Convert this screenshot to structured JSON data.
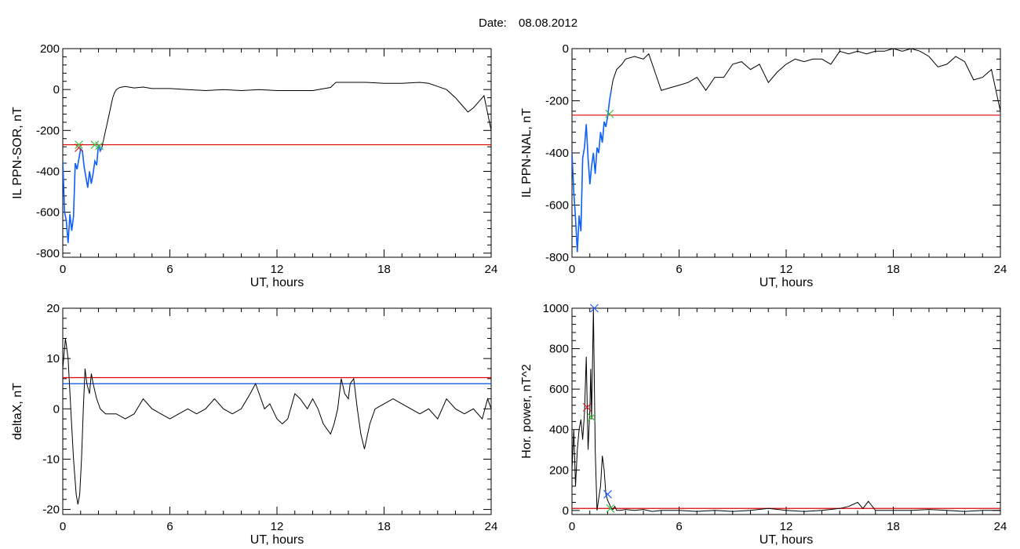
{
  "figure": {
    "title_label": "Date:",
    "title_value": "08.08.2012"
  },
  "colors": {
    "trace": "#000000",
    "threshold_red": "#e00000",
    "threshold_blue": "#0050e0",
    "highlight_blue": "#1060ff",
    "marker_green": "#40c040",
    "marker_red": "#d02020",
    "marker_blue": "#2060ff"
  },
  "chart_data": [
    {
      "type": "line",
      "xlabel": "UT, hours",
      "ylabel": "IL PPN-SOR, nT",
      "xlim": [
        0,
        24
      ],
      "ylim": [
        -820,
        200
      ],
      "xticks": [
        0,
        6,
        12,
        18,
        24
      ],
      "yticks": [
        -800,
        -600,
        -400,
        -200,
        0,
        200
      ],
      "thresholds": [
        {
          "color": "red",
          "y": -270
        }
      ],
      "series": [
        {
          "x": [
            0,
            0.1,
            0.2,
            0.3,
            0.4,
            0.5,
            0.6,
            0.7,
            0.8,
            0.9,
            1.0,
            1.1,
            1.2,
            1.3,
            1.4,
            1.5,
            1.6,
            1.7,
            1.8,
            1.9,
            2.0,
            2.1,
            2.2,
            2.3,
            2.4,
            2.5,
            2.6,
            2.7,
            2.8,
            2.9,
            3.0,
            3.2,
            3.5,
            4,
            4.5,
            5,
            6,
            7,
            8,
            9,
            10,
            11,
            12,
            13,
            14,
            15,
            15.3,
            16,
            17,
            18,
            19,
            20,
            20.5,
            21,
            21.5,
            22,
            22.4,
            22.7,
            23,
            23.3,
            23.6,
            24
          ],
          "y": [
            -350,
            -600,
            -640,
            -750,
            -610,
            -690,
            -620,
            -360,
            -390,
            -340,
            -290,
            -300,
            -380,
            -430,
            -480,
            -400,
            -460,
            -410,
            -350,
            -370,
            -270,
            -300,
            -280,
            -240,
            -200,
            -160,
            -120,
            -80,
            -40,
            -15,
            0,
            10,
            15,
            8,
            12,
            5,
            5,
            0,
            -5,
            0,
            -5,
            0,
            -5,
            -5,
            -5,
            10,
            35,
            35,
            35,
            30,
            30,
            35,
            30,
            15,
            0,
            -40,
            -80,
            -110,
            -90,
            -60,
            -30,
            -200
          ]
        }
      ],
      "highlight": {
        "x0": 0,
        "x1": 2.2,
        "color": "blue"
      },
      "markers": [
        {
          "x": 0.9,
          "y": -285,
          "color": "red"
        },
        {
          "x": 0.9,
          "y": -270,
          "color": "green"
        },
        {
          "x": 1.8,
          "y": -270,
          "color": "green"
        },
        {
          "x": 2.05,
          "y": -275,
          "color": "green"
        }
      ]
    },
    {
      "type": "line",
      "xlabel": "UT, hours",
      "ylabel": "IL PPN-NAL, nT",
      "xlim": [
        0,
        24
      ],
      "ylim": [
        -800,
        0
      ],
      "xticks": [
        0,
        6,
        12,
        18,
        24
      ],
      "yticks": [
        -800,
        -600,
        -400,
        -200,
        0
      ],
      "thresholds": [
        {
          "color": "red",
          "y": -255
        }
      ],
      "series": [
        {
          "x": [
            0,
            0.1,
            0.2,
            0.3,
            0.4,
            0.5,
            0.6,
            0.7,
            0.8,
            0.9,
            1.0,
            1.1,
            1.2,
            1.3,
            1.4,
            1.5,
            1.6,
            1.7,
            1.8,
            1.9,
            2.0,
            2.1,
            2.2,
            2.3,
            2.5,
            2.8,
            3,
            3.5,
            4,
            4.3,
            4.5,
            4.8,
            5,
            5.5,
            6,
            6.5,
            7,
            7.5,
            8,
            8.5,
            9,
            9.5,
            10,
            10.5,
            11,
            11.5,
            12,
            12.5,
            13,
            13.5,
            14,
            14.5,
            15,
            15.5,
            16,
            16.5,
            17,
            17.5,
            18,
            18.5,
            19,
            19.5,
            20,
            20.5,
            21,
            21.5,
            22,
            22.5,
            23,
            23.5,
            24
          ],
          "y": [
            -400,
            -550,
            -650,
            -780,
            -640,
            -700,
            -420,
            -380,
            -290,
            -420,
            -520,
            -450,
            -400,
            -480,
            -380,
            -400,
            -320,
            -360,
            -280,
            -300,
            -260,
            -200,
            -160,
            -120,
            -80,
            -60,
            -40,
            -30,
            -40,
            -20,
            -60,
            -120,
            -160,
            -150,
            -140,
            -130,
            -110,
            -160,
            -110,
            -110,
            -60,
            -50,
            -80,
            -60,
            -130,
            -90,
            -60,
            -40,
            -50,
            -40,
            -40,
            -60,
            -10,
            -20,
            -10,
            -20,
            -10,
            -10,
            0,
            -10,
            0,
            -10,
            -30,
            -70,
            -60,
            -30,
            -50,
            -120,
            -110,
            -80,
            -240
          ]
        }
      ],
      "highlight": {
        "x0": 0,
        "x1": 2.2,
        "color": "blue"
      },
      "markers": [
        {
          "x": 2.1,
          "y": -250,
          "color": "green"
        }
      ]
    },
    {
      "type": "line",
      "xlabel": "UT, hours",
      "ylabel": "deltaX, nT",
      "xlim": [
        0,
        24
      ],
      "ylim": [
        -21,
        20
      ],
      "xticks": [
        0,
        6,
        12,
        18,
        24
      ],
      "yticks": [
        -20,
        -10,
        0,
        10,
        20
      ],
      "thresholds": [
        {
          "color": "red",
          "y": 6.2
        },
        {
          "color": "blue",
          "y": 5.0
        }
      ],
      "series": [
        {
          "x": [
            0,
            0.15,
            0.3,
            0.45,
            0.6,
            0.75,
            0.85,
            0.95,
            1.05,
            1.15,
            1.25,
            1.35,
            1.5,
            1.6,
            1.7,
            1.9,
            2.1,
            2.4,
            3,
            3.5,
            4,
            4.5,
            5,
            5.5,
            6,
            6.5,
            7,
            7.5,
            8,
            8.5,
            9,
            9.5,
            10,
            10.5,
            10.8,
            11,
            11.3,
            11.6,
            12,
            12.3,
            12.6,
            13,
            13.3,
            13.7,
            14,
            14.3,
            14.6,
            15,
            15.2,
            15.4,
            15.6,
            15.8,
            16,
            16.1,
            16.3,
            16.5,
            16.7,
            16.9,
            17.2,
            17.5,
            18,
            18.5,
            19,
            19.5,
            20,
            20.5,
            21,
            21.5,
            22,
            22.5,
            23,
            23.5,
            23.8,
            24
          ],
          "y": [
            8,
            14,
            10,
            0,
            -10,
            -17,
            -19,
            -17,
            -10,
            0,
            8,
            5,
            3,
            7,
            5,
            2,
            0,
            -1,
            -1,
            -2,
            -1,
            2,
            0,
            -1,
            -2,
            -1,
            0,
            -1,
            0,
            2,
            0,
            -1,
            0,
            3,
            5,
            3,
            0,
            1,
            -2,
            -3,
            -2,
            3,
            2,
            0,
            2,
            0,
            -3,
            -5,
            -3,
            0,
            6,
            3,
            2,
            5,
            6,
            0,
            -5,
            -8,
            -3,
            0,
            1,
            2,
            1,
            0,
            -1,
            0,
            -2,
            2,
            0,
            -1,
            0,
            -2,
            2,
            0
          ]
        }
      ]
    },
    {
      "type": "line",
      "xlabel": "UT, hours",
      "ylabel": "Hor. power, nT^2",
      "xlim": [
        0,
        24
      ],
      "ylim": [
        -20,
        1000
      ],
      "xticks": [
        0,
        6,
        12,
        18,
        24
      ],
      "yticks": [
        0,
        200,
        400,
        600,
        800,
        1000
      ],
      "thresholds": [
        {
          "color": "red",
          "y": 10
        }
      ],
      "series": [
        {
          "x": [
            0,
            0.1,
            0.2,
            0.3,
            0.4,
            0.5,
            0.6,
            0.7,
            0.8,
            0.9,
            1.0,
            1.05,
            1.1,
            1.2,
            1.3,
            1.4,
            1.5,
            1.6,
            1.7,
            1.8,
            1.9,
            2.0,
            2.1,
            2.2,
            2.3,
            2.4,
            2.5,
            2.7,
            3,
            3.5,
            4,
            4.5,
            5,
            6,
            7,
            8,
            9,
            10,
            11,
            12,
            13,
            14,
            15,
            15.5,
            16,
            16.3,
            16.6,
            17,
            18,
            19,
            20,
            21,
            22,
            23,
            24
          ],
          "y": [
            200,
            400,
            120,
            300,
            400,
            450,
            350,
            480,
            760,
            300,
            500,
            700,
            450,
            1000,
            300,
            0,
            60,
            120,
            270,
            200,
            80,
            50,
            30,
            10,
            5,
            20,
            0,
            0,
            5,
            0,
            5,
            -5,
            0,
            0,
            -5,
            0,
            -5,
            0,
            10,
            0,
            -5,
            0,
            10,
            20,
            40,
            10,
            45,
            0,
            0,
            0,
            5,
            0,
            -5,
            0,
            0
          ]
        }
      ],
      "markers": [
        {
          "x": 0.85,
          "y": 510,
          "color": "red"
        },
        {
          "x": 1.1,
          "y": 460,
          "color": "green"
        },
        {
          "x": 1.25,
          "y": 1000,
          "color": "blue"
        },
        {
          "x": 2.0,
          "y": 80,
          "color": "blue"
        },
        {
          "x": 2.15,
          "y": 10,
          "color": "green"
        }
      ]
    }
  ]
}
